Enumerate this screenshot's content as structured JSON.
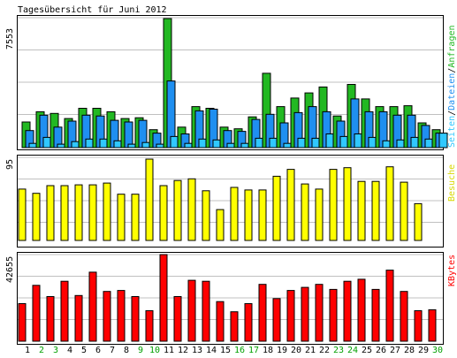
{
  "title": "Tagesübersicht für Juni 2012",
  "colors": {
    "background": "#ffffff",
    "grid": "#c0c0c0",
    "anfragen": "#22b822",
    "dateien": "#1f8ff0",
    "seiten": "#30c8ff",
    "besuche": "#ffff00",
    "kbytes": "#ff0000",
    "weekday_label": "#000000",
    "weekend_label": "#00a000"
  },
  "chart_data": [
    {
      "type": "bar",
      "panel": "hits",
      "ymax_label": "7553",
      "ylim": [
        0,
        7553
      ],
      "categories": [
        "1",
        "2",
        "3",
        "4",
        "5",
        "6",
        "7",
        "8",
        "9",
        "10",
        "11",
        "12",
        "13",
        "14",
        "15",
        "16",
        "17",
        "18",
        "19",
        "20",
        "21",
        "22",
        "23",
        "24",
        "25",
        "26",
        "27",
        "28",
        "29",
        "30"
      ],
      "weekend": [
        "2",
        "3",
        "9",
        "10",
        "16",
        "17",
        "23",
        "24",
        "30"
      ],
      "legend": {
        "seiten": "Seiten",
        "sep1": "/",
        "dateien": "Dateien",
        "sep2": "/",
        "anfragen": "Anfragen"
      },
      "series": [
        {
          "name": "Anfragen",
          "color_key": "anfragen",
          "values": [
            1500,
            2100,
            2000,
            1700,
            2300,
            2300,
            2100,
            1700,
            1750,
            1050,
            7553,
            1200,
            2400,
            2300,
            1200,
            1100,
            1800,
            4350,
            2400,
            2900,
            3200,
            3550,
            1850,
            3700,
            2850,
            2400,
            2400,
            2450,
            1450,
            1050
          ]
        },
        {
          "name": "Dateien",
          "color_key": "dateien",
          "values": [
            1000,
            1900,
            1200,
            1550,
            1900,
            1850,
            1600,
            1500,
            1600,
            850,
            3900,
            800,
            2150,
            2250,
            1000,
            950,
            1650,
            1950,
            1450,
            2050,
            2400,
            2100,
            1550,
            2850,
            2100,
            2100,
            1900,
            1900,
            1300,
            850
          ]
        },
        {
          "name": "Seiten",
          "color_key": "seiten",
          "values": [
            250,
            600,
            200,
            350,
            500,
            500,
            400,
            200,
            300,
            200,
            650,
            250,
            500,
            450,
            250,
            250,
            550,
            550,
            250,
            550,
            550,
            800,
            650,
            800,
            600,
            400,
            450,
            600,
            500,
            850
          ]
        }
      ]
    },
    {
      "type": "bar",
      "panel": "visits",
      "ymax_label": "95",
      "ylim": [
        0,
        95
      ],
      "legend": {
        "besuche": "Besuche"
      },
      "categories": [
        "1",
        "2",
        "3",
        "4",
        "5",
        "6",
        "7",
        "8",
        "9",
        "10",
        "11",
        "12",
        "13",
        "14",
        "15",
        "16",
        "17",
        "18",
        "19",
        "20",
        "21",
        "22",
        "23",
        "24",
        "25",
        "26",
        "27",
        "28",
        "29",
        "30"
      ],
      "series": [
        {
          "name": "Besuche",
          "color_key": "besuche",
          "values": [
            60,
            55,
            64,
            64,
            65,
            65,
            67,
            54,
            54,
            95,
            64,
            70,
            72,
            58,
            36,
            62,
            59,
            59,
            75,
            83,
            66,
            60,
            83,
            85,
            69,
            69,
            86,
            68,
            43,
            0
          ]
        }
      ]
    },
    {
      "type": "bar",
      "panel": "kbytes",
      "ymax_label": "42655",
      "ylim": [
        0,
        42655
      ],
      "legend": {
        "kbytes": "KBytes"
      },
      "categories": [
        "1",
        "2",
        "3",
        "4",
        "5",
        "6",
        "7",
        "8",
        "9",
        "10",
        "11",
        "12",
        "13",
        "14",
        "15",
        "16",
        "17",
        "18",
        "19",
        "20",
        "21",
        "22",
        "23",
        "24",
        "25",
        "26",
        "27",
        "28",
        "29",
        "30"
      ],
      "series": [
        {
          "name": "KBytes",
          "color_key": "kbytes",
          "values": [
            18500,
            27500,
            22000,
            29500,
            22500,
            34000,
            24500,
            25000,
            22000,
            15000,
            42655,
            22000,
            30000,
            29500,
            19500,
            14500,
            18500,
            28000,
            21000,
            25000,
            26500,
            28000,
            25500,
            29500,
            30500,
            25500,
            35000,
            24500,
            15000,
            15500
          ]
        }
      ]
    }
  ]
}
